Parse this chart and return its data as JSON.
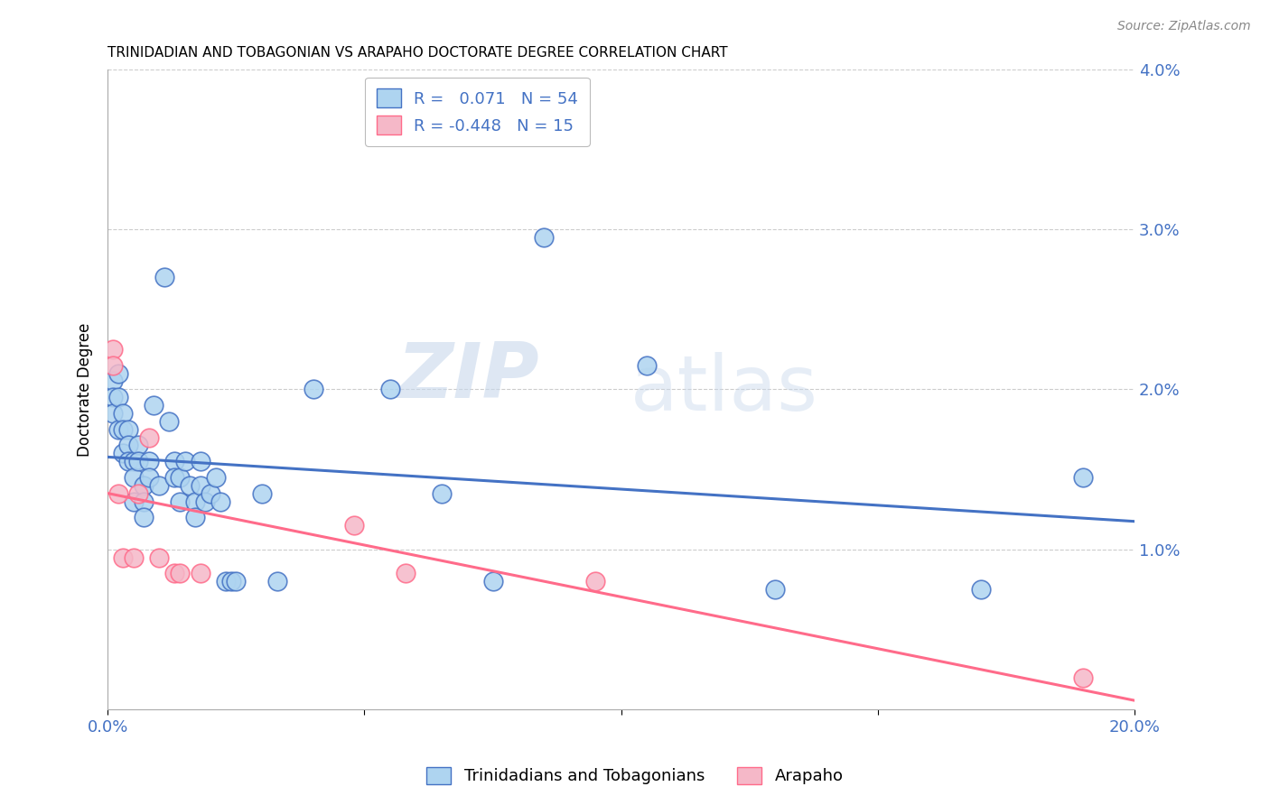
{
  "title": "TRINIDADIAN AND TOBAGONIAN VS ARAPAHO DOCTORATE DEGREE CORRELATION CHART",
  "source": "Source: ZipAtlas.com",
  "ylabel": "Doctorate Degree",
  "xlim": [
    0.0,
    0.2
  ],
  "ylim": [
    0.0,
    0.04
  ],
  "blue_R": "0.071",
  "blue_N": "54",
  "pink_R": "-0.448",
  "pink_N": "15",
  "legend_label_blue": "Trinidadians and Tobagonians",
  "legend_label_pink": "Arapaho",
  "watermark_zip": "ZIP",
  "watermark_atlas": "atlas",
  "blue_color": "#AED4F0",
  "pink_color": "#F5B8C8",
  "line_blue": "#4472C4",
  "line_pink": "#FF6B8A",
  "tick_color": "#4472C4",
  "blue_points": [
    [
      0.001,
      0.0205
    ],
    [
      0.001,
      0.0195
    ],
    [
      0.001,
      0.0185
    ],
    [
      0.002,
      0.021
    ],
    [
      0.002,
      0.0195
    ],
    [
      0.002,
      0.0175
    ],
    [
      0.003,
      0.0185
    ],
    [
      0.003,
      0.0175
    ],
    [
      0.003,
      0.016
    ],
    [
      0.004,
      0.0175
    ],
    [
      0.004,
      0.0165
    ],
    [
      0.004,
      0.0155
    ],
    [
      0.005,
      0.0155
    ],
    [
      0.005,
      0.0145
    ],
    [
      0.005,
      0.013
    ],
    [
      0.006,
      0.0165
    ],
    [
      0.006,
      0.0155
    ],
    [
      0.007,
      0.014
    ],
    [
      0.007,
      0.013
    ],
    [
      0.007,
      0.012
    ],
    [
      0.008,
      0.0155
    ],
    [
      0.008,
      0.0145
    ],
    [
      0.009,
      0.019
    ],
    [
      0.01,
      0.014
    ],
    [
      0.011,
      0.027
    ],
    [
      0.012,
      0.018
    ],
    [
      0.013,
      0.0155
    ],
    [
      0.013,
      0.0145
    ],
    [
      0.014,
      0.0145
    ],
    [
      0.014,
      0.013
    ],
    [
      0.015,
      0.0155
    ],
    [
      0.016,
      0.014
    ],
    [
      0.017,
      0.013
    ],
    [
      0.017,
      0.012
    ],
    [
      0.018,
      0.0155
    ],
    [
      0.018,
      0.014
    ],
    [
      0.019,
      0.013
    ],
    [
      0.02,
      0.0135
    ],
    [
      0.021,
      0.0145
    ],
    [
      0.022,
      0.013
    ],
    [
      0.023,
      0.008
    ],
    [
      0.024,
      0.008
    ],
    [
      0.025,
      0.008
    ],
    [
      0.03,
      0.0135
    ],
    [
      0.033,
      0.008
    ],
    [
      0.04,
      0.02
    ],
    [
      0.055,
      0.02
    ],
    [
      0.065,
      0.0135
    ],
    [
      0.075,
      0.008
    ],
    [
      0.085,
      0.0295
    ],
    [
      0.105,
      0.0215
    ],
    [
      0.13,
      0.0075
    ],
    [
      0.17,
      0.0075
    ],
    [
      0.19,
      0.0145
    ]
  ],
  "pink_points": [
    [
      0.001,
      0.0225
    ],
    [
      0.001,
      0.0215
    ],
    [
      0.002,
      0.0135
    ],
    [
      0.003,
      0.0095
    ],
    [
      0.005,
      0.0095
    ],
    [
      0.006,
      0.0135
    ],
    [
      0.008,
      0.017
    ],
    [
      0.01,
      0.0095
    ],
    [
      0.013,
      0.0085
    ],
    [
      0.014,
      0.0085
    ],
    [
      0.018,
      0.0085
    ],
    [
      0.048,
      0.0115
    ],
    [
      0.058,
      0.0085
    ],
    [
      0.095,
      0.008
    ],
    [
      0.19,
      0.002
    ]
  ]
}
